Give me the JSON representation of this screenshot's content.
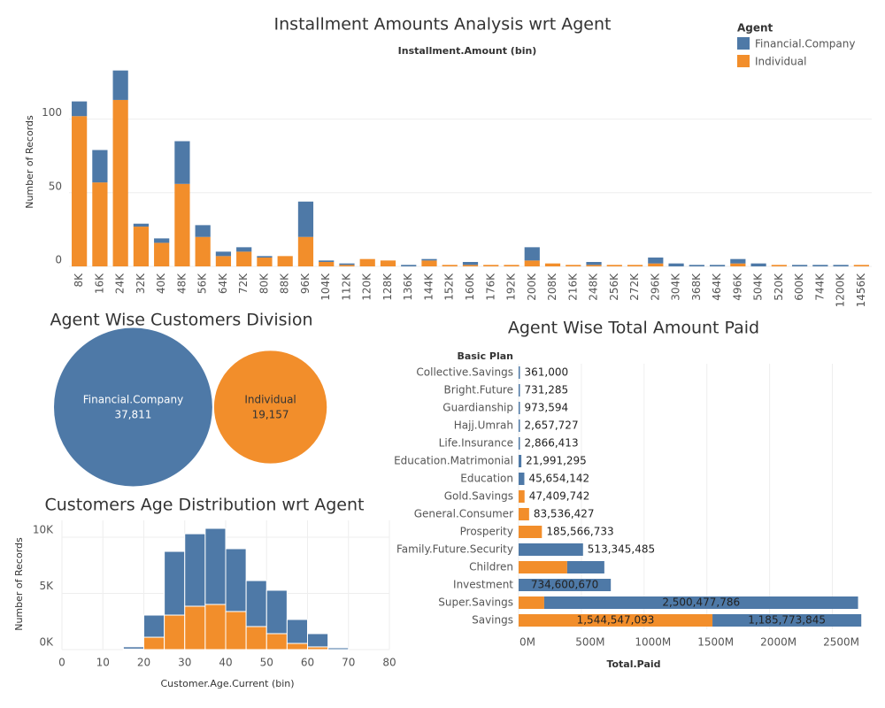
{
  "chart_data": [
    {
      "type": "bar",
      "title": "Installment Amounts Analysis wrt Agent",
      "subtitle": "Installment.Amount (bin)",
      "y_label": "Number of Records",
      "legend_title": "Agent",
      "legend": "top-right",
      "grid": true,
      "categories": [
        "8K",
        "16K",
        "24K",
        "32K",
        "40K",
        "48K",
        "56K",
        "64K",
        "72K",
        "80K",
        "88K",
        "96K",
        "104K",
        "112K",
        "120K",
        "128K",
        "136K",
        "144K",
        "152K",
        "160K",
        "176K",
        "192K",
        "200K",
        "208K",
        "216K",
        "248K",
        "256K",
        "272K",
        "296K",
        "304K",
        "368K",
        "464K",
        "496K",
        "504K",
        "520K",
        "600K",
        "744K",
        "1200K",
        "1456K"
      ],
      "series": [
        {
          "name": "Financial.Company",
          "color": "#4e79a7",
          "values": [
            10,
            22,
            20,
            2,
            3,
            29,
            8,
            3,
            3,
            1,
            0,
            24,
            1,
            1,
            0,
            0,
            1,
            1,
            0,
            2,
            0,
            0,
            9,
            0,
            0,
            2,
            0,
            0,
            4,
            2,
            1,
            1,
            3,
            2,
            0,
            1,
            1,
            1,
            0
          ]
        },
        {
          "name": "Individual",
          "color": "#f28e2b",
          "values": [
            102,
            57,
            113,
            27,
            16,
            56,
            20,
            7,
            10,
            6,
            7,
            20,
            3,
            1,
            5,
            4,
            0,
            4,
            1,
            1,
            1,
            1,
            4,
            2,
            1,
            1,
            1,
            1,
            2,
            0,
            0,
            0,
            2,
            0,
            1,
            0,
            0,
            0,
            1
          ]
        }
      ],
      "ylim": [
        0,
        140
      ],
      "yticks": [
        0,
        50,
        100
      ]
    },
    {
      "type": "bubble",
      "title": "Agent Wise Customers Division",
      "categories": [
        "Financial.Company",
        "Individual"
      ],
      "values": [
        37811,
        19157
      ],
      "value_labels": [
        "37,811",
        "19,157"
      ],
      "colors": [
        "#4e79a7",
        "#f28e2b"
      ]
    },
    {
      "type": "histogram",
      "title": "Customers Age Distribution wrt Agent",
      "x_label": "Customer.Age.Current (bin)",
      "y_label": "Number of Records",
      "grid": true,
      "bins": [
        15,
        20,
        25,
        30,
        35,
        40,
        45,
        50,
        55,
        60,
        65,
        70
      ],
      "series": [
        {
          "name": "Financial.Company",
          "color": "#4e79a7",
          "values": [
            200,
            1970,
            5670,
            6450,
            6770,
            5590,
            4090,
            3860,
            2130,
            1180,
            160
          ]
        },
        {
          "name": "Individual",
          "color": "#f28e2b",
          "values": [
            50,
            1100,
            3070,
            3860,
            4020,
            3390,
            2050,
            1420,
            550,
            240,
            0
          ]
        }
      ],
      "xlim": [
        0,
        80
      ],
      "xticks": [
        0,
        10,
        20,
        30,
        40,
        50,
        60,
        70,
        80
      ],
      "ylim": [
        0,
        11500
      ],
      "yticks": [
        {
          "value": 0,
          "label": "0K"
        },
        {
          "value": 5000,
          "label": "5K"
        },
        {
          "value": 10000,
          "label": "10K"
        }
      ]
    },
    {
      "type": "hbar",
      "title": "Agent Wise Total Amount Paid",
      "y_label": "Basic Plan",
      "x_label": "Total.Paid",
      "grid": true,
      "categories": [
        "Collective.Savings",
        "Bright.Future",
        "Guardianship",
        "Hajj.Umrah",
        "Life.Insurance",
        "Education.Matrimonial",
        "Education",
        "Gold.Savings",
        "General.Consumer",
        "Prosperity",
        "Family.Future.Security",
        "Children",
        "Investment",
        "Super.Savings",
        "Savings"
      ],
      "series": [
        {
          "name": "Financial.Company",
          "color": "#4e79a7",
          "values": [
            361000,
            731285,
            973594,
            2657727,
            2866413,
            21991295,
            45654142,
            null,
            null,
            null,
            513345485,
            296000000,
            734600670,
            2500477786,
            1185773845
          ],
          "value_labels": [
            "361,000",
            "731,285",
            "973,594",
            "2,657,727",
            "2,866,413",
            "21,991,295",
            "45,654,142",
            null,
            null,
            null,
            "513,345,485",
            null,
            "734,600,670",
            "2,500,477,786",
            "1,185,773,845"
          ]
        },
        {
          "name": "Individual",
          "color": "#f28e2b",
          "values": [
            null,
            null,
            null,
            null,
            null,
            null,
            null,
            47409742,
            83536427,
            185566733,
            null,
            387000000,
            null,
            204000000,
            1544547093
          ],
          "value_labels": [
            null,
            null,
            null,
            null,
            null,
            null,
            null,
            "47,409,742",
            "83,536,427",
            "185,566,733",
            null,
            null,
            null,
            null,
            "1,544,547,093"
          ]
        }
      ],
      "xlim": [
        0,
        2750000000
      ],
      "xticks": [
        {
          "value": 0,
          "label": "0M"
        },
        {
          "value": 500000000,
          "label": "500M"
        },
        {
          "value": 1000000000,
          "label": "1000M"
        },
        {
          "value": 1500000000,
          "label": "1500M"
        },
        {
          "value": 2000000000,
          "label": "2000M"
        },
        {
          "value": 2500000000,
          "label": "2500M"
        }
      ]
    }
  ]
}
